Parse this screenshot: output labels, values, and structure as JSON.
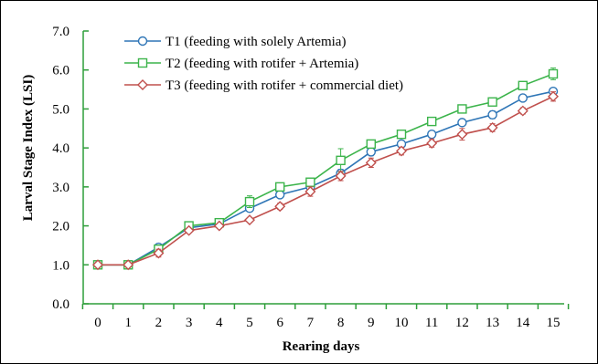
{
  "chart_data": {
    "type": "line",
    "title": "",
    "xlabel": "Rearing days",
    "ylabel": "Larval Stage Index (LSI)",
    "x": [
      0,
      1,
      2,
      3,
      4,
      5,
      6,
      7,
      8,
      9,
      10,
      11,
      12,
      13,
      14,
      15
    ],
    "x_ticks": [
      "0",
      "1",
      "2",
      "3",
      "4",
      "5",
      "6",
      "7",
      "8",
      "9",
      "10",
      "11",
      "12",
      "13",
      "14",
      "15"
    ],
    "ylim": [
      0,
      7
    ],
    "y_ticks": [
      "0.0",
      "1.0",
      "2.0",
      "3.0",
      "4.0",
      "5.0",
      "6.0",
      "7.0"
    ],
    "grid": false,
    "legend_position": "top-left",
    "error_bars": true,
    "series": [
      {
        "name": "T1 (feeding with solely Artemia)",
        "color": "#2e75b6",
        "marker": "circle",
        "values": [
          1.0,
          1.0,
          1.45,
          1.95,
          2.05,
          2.45,
          2.8,
          3.0,
          3.35,
          3.9,
          4.1,
          4.35,
          4.65,
          4.85,
          5.28,
          5.45
        ],
        "errors": [
          0.0,
          0.0,
          0.05,
          0.05,
          0.05,
          0.08,
          0.08,
          0.08,
          0.1,
          0.1,
          0.08,
          0.08,
          0.08,
          0.1,
          0.08,
          0.08
        ]
      },
      {
        "name": "T2 (feeding with rotifer + Artemia)",
        "color": "#3cb44b",
        "marker": "square",
        "values": [
          1.0,
          1.0,
          1.4,
          2.0,
          2.08,
          2.62,
          3.0,
          3.12,
          3.68,
          4.1,
          4.35,
          4.68,
          5.0,
          5.18,
          5.6,
          5.9
        ],
        "errors": [
          0.0,
          0.0,
          0.05,
          0.05,
          0.05,
          0.15,
          0.08,
          0.08,
          0.3,
          0.08,
          0.08,
          0.08,
          0.08,
          0.1,
          0.08,
          0.15
        ]
      },
      {
        "name": "T3 (feeding with rotifer + commercial diet)",
        "color": "#c0504d",
        "marker": "diamond",
        "values": [
          1.0,
          1.0,
          1.3,
          1.88,
          2.0,
          2.15,
          2.5,
          2.88,
          3.28,
          3.62,
          3.92,
          4.12,
          4.35,
          4.52,
          4.95,
          5.32
        ],
        "errors": [
          0.0,
          0.0,
          0.1,
          0.05,
          0.05,
          0.05,
          0.08,
          0.12,
          0.12,
          0.12,
          0.1,
          0.1,
          0.15,
          0.1,
          0.08,
          0.12
        ]
      }
    ]
  }
}
